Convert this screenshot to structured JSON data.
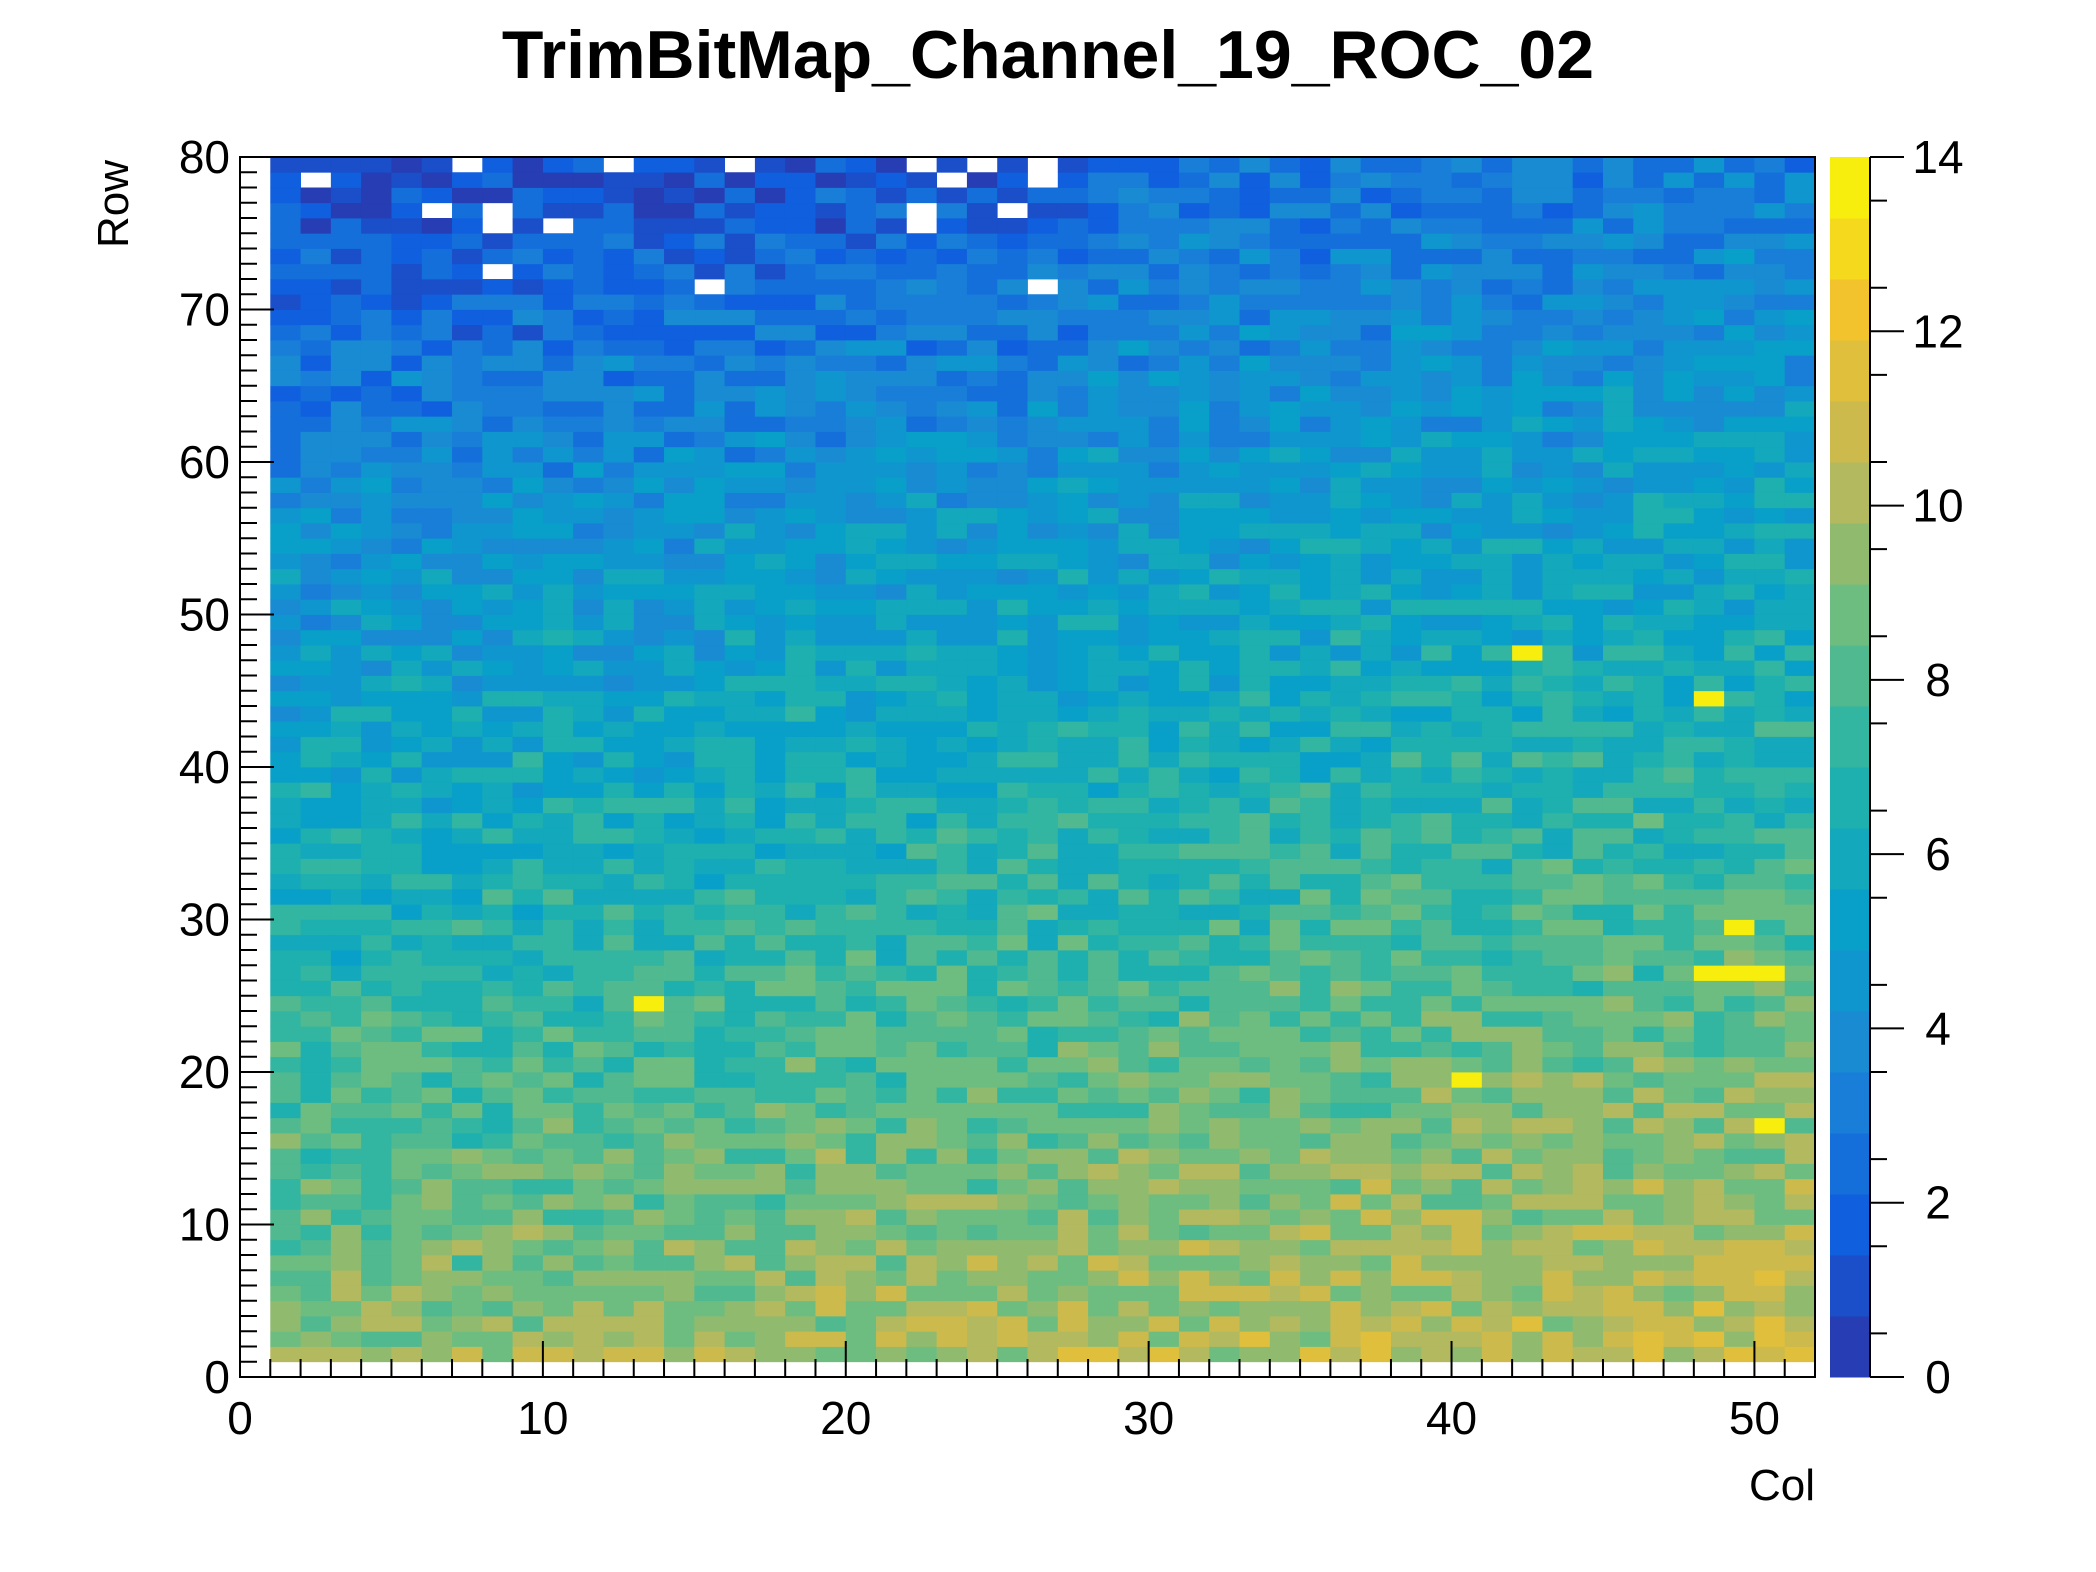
{
  "chart_data": {
    "type": "heatmap",
    "title": "TrimBitMap_Channel_19_ROC_02",
    "xlabel": "Col",
    "ylabel": "Row",
    "xlim": [
      0,
      52
    ],
    "ylim": [
      0,
      80
    ],
    "zlim": [
      0,
      14
    ],
    "x_ticks": [
      0,
      10,
      20,
      30,
      40,
      50
    ],
    "y_ticks": [
      0,
      10,
      20,
      30,
      40,
      50,
      60,
      70,
      80
    ],
    "z_ticks": [
      0,
      2,
      4,
      6,
      8,
      10,
      12,
      14
    ],
    "x_minor_step": 1,
    "y_minor_step": 1,
    "x_bins": [
      1,
      51
    ],
    "y_bins": [
      1,
      79
    ],
    "empty_cells": [
      [
        2,
        78
      ],
      [
        7,
        79
      ],
      [
        12,
        79
      ],
      [
        16,
        79
      ],
      [
        22,
        79
      ],
      [
        23,
        78
      ],
      [
        24,
        79
      ],
      [
        26,
        79
      ],
      [
        26,
        78
      ],
      [
        6,
        76
      ],
      [
        8,
        76
      ],
      [
        8,
        75
      ],
      [
        10,
        75
      ],
      [
        22,
        76
      ],
      [
        22,
        75
      ],
      [
        25,
        76
      ],
      [
        8,
        72
      ],
      [
        15,
        71
      ],
      [
        26,
        71
      ]
    ],
    "hot_cells": [
      [
        13,
        24
      ],
      [
        40,
        19
      ],
      [
        42,
        47
      ],
      [
        48,
        44
      ],
      [
        50,
        16
      ],
      [
        48,
        26
      ],
      [
        49,
        26
      ],
      [
        50,
        26
      ],
      [
        49,
        29
      ]
    ],
    "palette": [
      "#2c35a8",
      "#0f5fdf",
      "#1c86d6",
      "#08a0c8",
      "#23b3a9",
      "#6ebd80",
      "#c4b855",
      "#f2c32c",
      "#f9f905"
    ],
    "grid": false,
    "legend": "colorbar-right"
  }
}
